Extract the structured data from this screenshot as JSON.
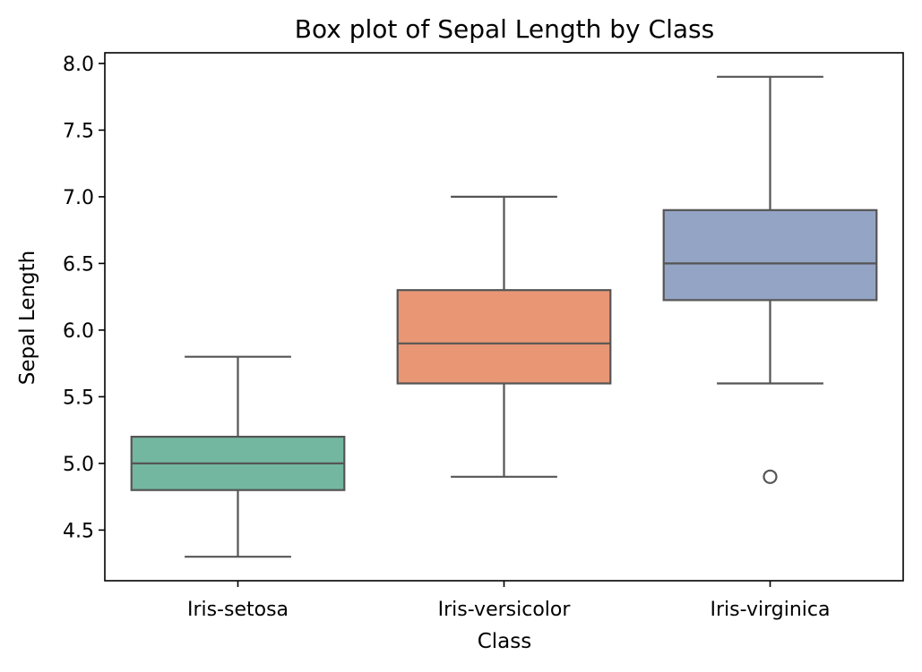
{
  "chart_data": {
    "type": "box",
    "title": "Box plot of Sepal Length by Class",
    "xlabel": "Class",
    "ylabel": "Sepal Length",
    "ylim": [
      4.12,
      8.08
    ],
    "yticks": [
      4.5,
      5.0,
      5.5,
      6.0,
      6.5,
      7.0,
      7.5,
      8.0
    ],
    "ytick_labels": [
      "4.5",
      "5.0",
      "5.5",
      "6.0",
      "6.5",
      "7.0",
      "7.5",
      "8.0"
    ],
    "grid": false,
    "legend": "none",
    "categories": [
      "Iris-setosa",
      "Iris-versicolor",
      "Iris-virginica"
    ],
    "boxes": [
      {
        "category": "Iris-setosa",
        "whisker_low": 4.3,
        "q1": 4.8,
        "median": 5.0,
        "q3": 5.2,
        "whisker_high": 5.8,
        "outliers": [],
        "color": "#73b7a0"
      },
      {
        "category": "Iris-versicolor",
        "whisker_low": 4.9,
        "q1": 5.6,
        "median": 5.9,
        "q3": 6.3,
        "whisker_high": 7.0,
        "outliers": [],
        "color": "#e99675"
      },
      {
        "category": "Iris-virginica",
        "whisker_low": 5.6,
        "q1": 6.225,
        "median": 6.5,
        "q3": 6.9,
        "whisker_high": 7.9,
        "outliers": [
          4.9
        ],
        "color": "#94a4c5"
      }
    ]
  }
}
